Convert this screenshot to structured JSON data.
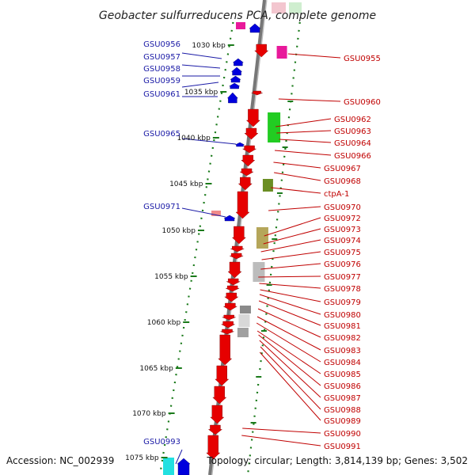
{
  "title": "Geobacter sulfurreducens PCA, complete genome",
  "accession_text": "Accession: NC_002939",
  "topology_text": "Topology: circular; Length: 3,814,139 bp; Genes: 3,502",
  "colors": {
    "forward": "#e60000",
    "reverse": "#0000dd",
    "backbone": "#777777",
    "tick": "#1a7a1a",
    "left_label": "#1a1aa6",
    "right_label": "#c00000"
  },
  "kbp_labels": [
    "1030 kbp",
    "1035 kbp",
    "1040 kbp",
    "1045 kbp",
    "1050 kbp",
    "1055 kbp",
    "1060 kbp",
    "1065 kbp",
    "1070 kbp",
    "1075 kbp"
  ],
  "left_genes": [
    "GSU0956",
    "GSU0957",
    "GSU0958",
    "GSU0959",
    "GSU0961",
    "GSU0965",
    "GSU0971",
    "GSU0993"
  ],
  "right_genes": [
    "GSU0955",
    "GSU0960",
    "GSU0962",
    "GSU0963",
    "GSU0964",
    "GSU0966",
    "GSU0967",
    "GSU0968",
    "ctpA-1",
    "GSU0970",
    "GSU0972",
    "GSU0973",
    "GSU0974",
    "GSU0975",
    "GSU0976",
    "GSU0977",
    "GSU0978",
    "GSU0979",
    "GSU0980",
    "GSU0981",
    "GSU0982",
    "GSU0983",
    "GSU0984",
    "GSU0985",
    "GSU0986",
    "GSU0987",
    "GSU0988",
    "GSU0989",
    "GSU0990",
    "GSU0991"
  ]
}
